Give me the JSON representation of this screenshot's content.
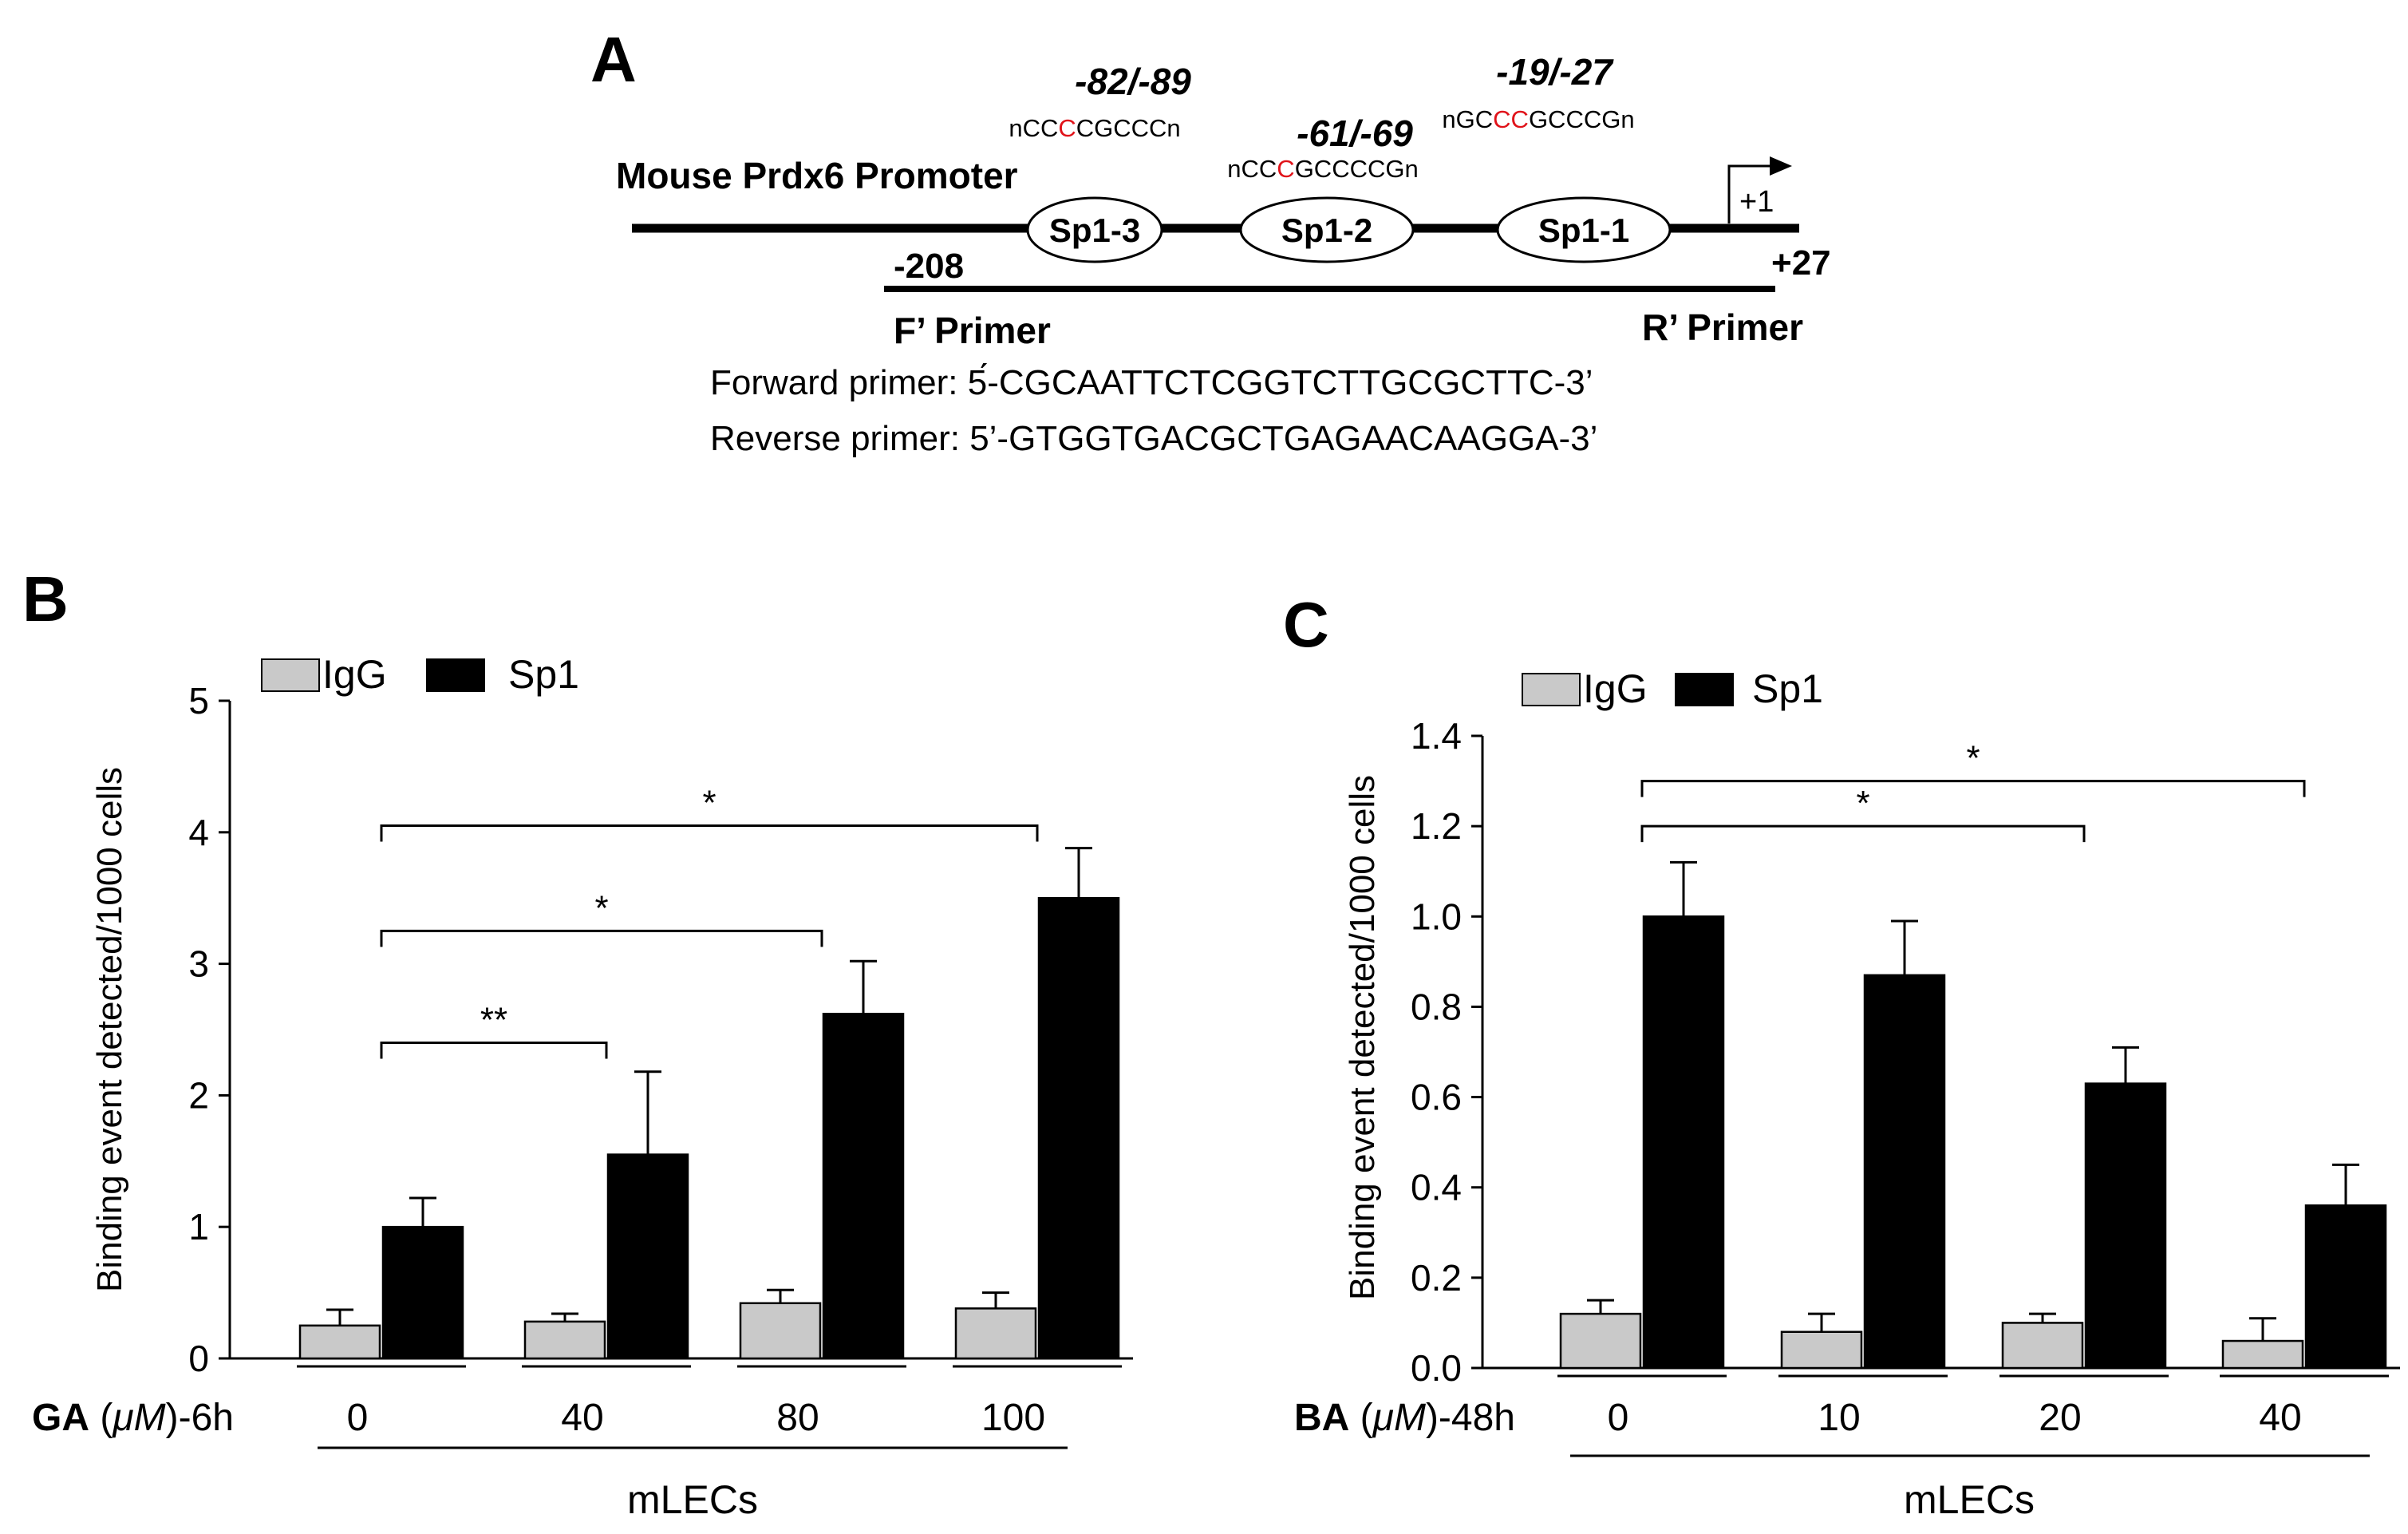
{
  "colors": {
    "igg": "#c9c9c9",
    "sp1": "#000000",
    "highlight": "#e0131a",
    "stroke": "#000000"
  },
  "panel_a": {
    "letter": "A",
    "promoter_label": "Mouse Prdx6 Promoter",
    "sites": [
      {
        "label": "Sp1-3",
        "position": "-82/-89",
        "seq_pre": "nCC",
        "seq_hi": "C",
        "seq_post": "CGCCCn"
      },
      {
        "label": "Sp1-2",
        "position": "-61/-69",
        "seq_pre": "nCC",
        "seq_hi": "C",
        "seq_post": "GCCCCGn"
      },
      {
        "label": "Sp1-1",
        "position": "-19/-27",
        "seq_pre": "nGC",
        "seq_hi": "CC",
        "seq_post": "GCCCGn"
      }
    ],
    "tss_label": "+1",
    "start_coord": "-208",
    "end_coord": "+27",
    "f_primer_label": "F’ Primer",
    "r_primer_label": "R’ Primer",
    "forward_primer_text": "Forward primer: 5́-CGCAATTCTCGGTCTTGCGCTTC-3’",
    "reverse_primer_text": "Reverse primer: 5’-GTGGTGACGCTGAGAACAAGGA-3’"
  },
  "chart_data": [
    {
      "panel": "B",
      "type": "bar",
      "legend": [
        "IgG",
        "Sp1"
      ],
      "ylabel": "Binding event  detected/1000 cells",
      "ylim": [
        0,
        5
      ],
      "yticks": [
        0,
        1,
        2,
        3,
        4,
        5
      ],
      "ytick_labels": [
        "0",
        "1",
        "2",
        "3",
        "4",
        "5"
      ],
      "categories": [
        "0",
        "40",
        "80",
        "100"
      ],
      "treatment_bold": "GA",
      "treatment_unit": "μM",
      "treatment_time": "-6h",
      "group_label": "mLECs",
      "series": [
        {
          "name": "IgG",
          "values": [
            0.25,
            0.28,
            0.42,
            0.38
          ],
          "errors": [
            0.12,
            0.06,
            0.1,
            0.12
          ]
        },
        {
          "name": "Sp1",
          "values": [
            1.0,
            1.55,
            2.62,
            3.5
          ],
          "errors": [
            0.22,
            0.63,
            0.4,
            0.38
          ]
        }
      ],
      "significance": [
        {
          "from": 0,
          "to": 1,
          "label": "**",
          "y": 2.4
        },
        {
          "from": 0,
          "to": 2,
          "label": "*",
          "y": 3.25
        },
        {
          "from": 0,
          "to": 3,
          "label": "*",
          "y": 4.05
        }
      ]
    },
    {
      "panel": "C",
      "type": "bar",
      "legend": [
        "IgG",
        "Sp1"
      ],
      "ylabel": "Binding event  detected/1000 cells",
      "ylim": [
        0,
        1.4
      ],
      "yticks": [
        0,
        0.2,
        0.4,
        0.6,
        0.8,
        1.0,
        1.2,
        1.4
      ],
      "ytick_labels": [
        "0.0",
        "0.2",
        "0.4",
        "0.6",
        "0.8",
        "1.0",
        "1.2",
        "1.4"
      ],
      "categories": [
        "0",
        "10",
        "20",
        "40"
      ],
      "treatment_bold": "BA",
      "treatment_unit": "μM",
      "treatment_time": "-48h",
      "group_label": "mLECs",
      "series": [
        {
          "name": "IgG",
          "values": [
            0.12,
            0.08,
            0.1,
            0.06
          ],
          "errors": [
            0.03,
            0.04,
            0.02,
            0.05
          ]
        },
        {
          "name": "Sp1",
          "values": [
            1.0,
            0.87,
            0.63,
            0.36
          ],
          "errors": [
            0.12,
            0.12,
            0.08,
            0.09
          ]
        }
      ],
      "significance": [
        {
          "from": 0,
          "to": 2,
          "label": "*",
          "y": 1.2
        },
        {
          "from": 0,
          "to": 3,
          "label": "*",
          "y": 1.3
        }
      ]
    }
  ]
}
